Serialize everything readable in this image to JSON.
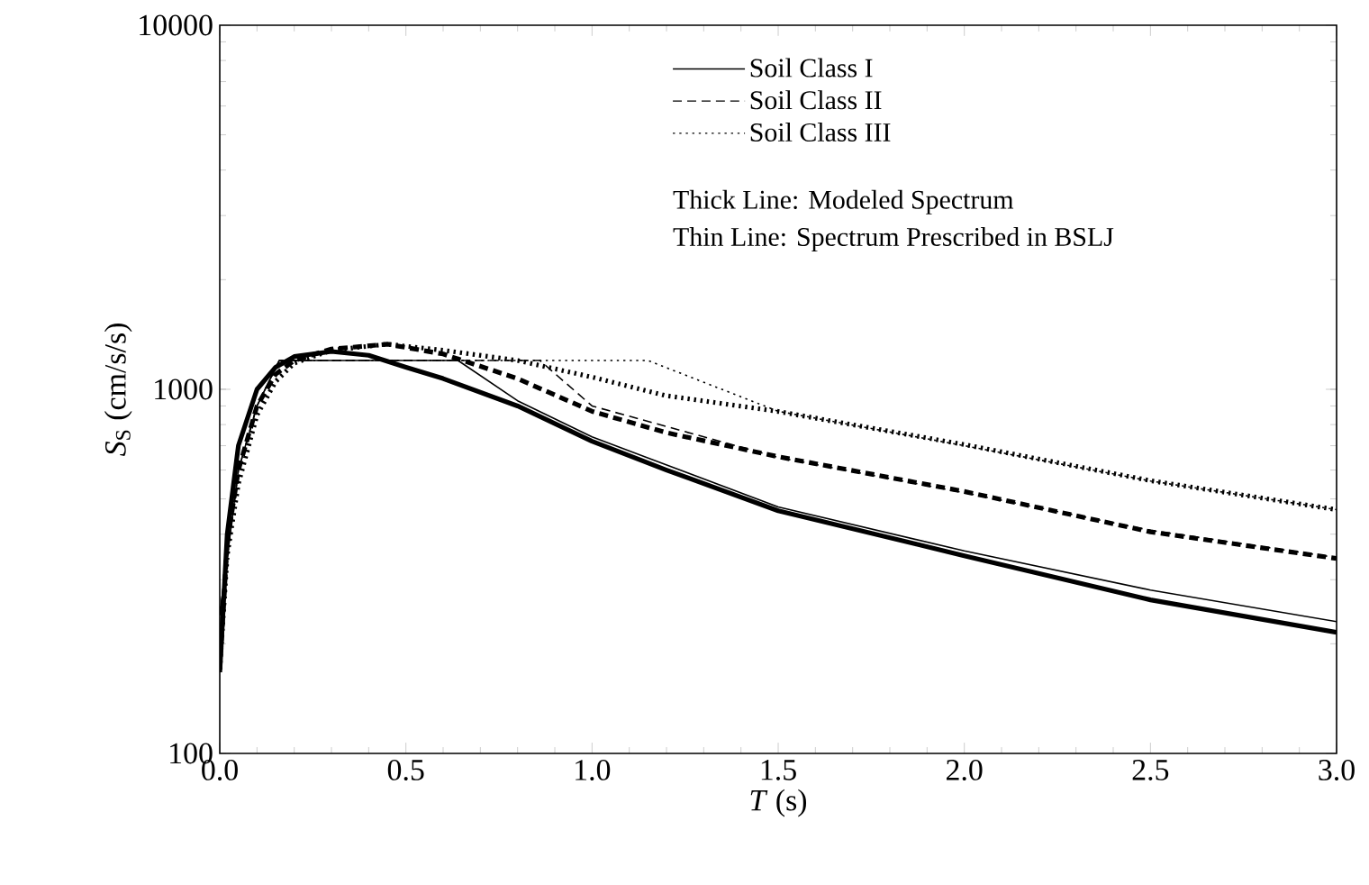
{
  "chart_data": {
    "type": "line",
    "xlabel": "*T* (s)",
    "ylabel": "*S*$_{S}$ (cm/s/s)",
    "log": "y",
    "xlim": [
      0,
      3.0
    ],
    "ylim": [
      100,
      10000
    ],
    "xticks": [
      {
        "value": 0,
        "label": "0.0"
      },
      0.5,
      {
        "value": 1,
        "label": "1.0"
      },
      1.5,
      {
        "value": 2,
        "label": "2.0"
      },
      2.5,
      {
        "value": 3,
        "label": "3.0"
      }
    ],
    "yticks": [
      100,
      1000,
      10000
    ],
    "grid": false,
    "legend": "top right",
    "marker": "none",
    "series": [
      {
        "name": "Soil Class I",
        "color": "#000000",
        "line_style": "solid",
        "x": [
          0,
          0.02,
          0.05,
          0.1,
          0.15,
          0.2,
          0.3,
          0.4,
          0.5,
          0.6,
          0.8,
          1.0,
          1.2,
          1.5,
          2.0,
          2.5,
          3.0
        ],
        "values": [
          167,
          400,
          700,
          1000,
          1150,
          1230,
          1270,
          1240,
          1150,
          1070,
          900,
          720,
          600,
          464,
          349,
          264,
          215
        ]
      },
      {
        "name": "Soil Class II",
        "color": "#000000",
        "line_style": "dashed",
        "x": [
          0,
          0.02,
          0.05,
          0.1,
          0.15,
          0.2,
          0.3,
          0.45,
          0.6,
          0.8,
          1.0,
          1.2,
          1.5,
          2.0,
          2.5,
          3.0
        ],
        "values": [
          170,
          380,
          600,
          900,
          1100,
          1200,
          1290,
          1330,
          1250,
          1070,
          870,
          760,
          653,
          524,
          406,
          343
        ]
      },
      {
        "name": "Soil Class III",
        "color": "#000000",
        "line_style": "dotted",
        "x": [
          0,
          0.02,
          0.05,
          0.1,
          0.15,
          0.2,
          0.3,
          0.45,
          0.6,
          0.8,
          1.0,
          1.2,
          1.5,
          2.0,
          2.5,
          3.0
        ],
        "values": [
          170,
          350,
          550,
          850,
          1050,
          1180,
          1280,
          1330,
          1280,
          1200,
          1080,
          960,
          869,
          705,
          561,
          467
        ]
      },
      {
        "color": "#000000",
        "line_style": "solid",
        "x": [
          0,
          0.05,
          0.1,
          0.16,
          0.64,
          0.8,
          1.0,
          1.5,
          2.0,
          2.5,
          3.0
        ],
        "values": [
          240,
          600,
          900,
          1200,
          1200,
          930,
          740,
          475,
          360,
          281,
          230
        ]
      },
      {
        "color": "#000000",
        "line_style": "dashed",
        "x": [
          0,
          0.05,
          0.1,
          0.16,
          0.86,
          1.0,
          1.5,
          2.0,
          2.5,
          3.0
        ],
        "values": [
          240,
          600,
          900,
          1200,
          1200,
          900,
          650,
          520,
          410,
          345
        ]
      },
      {
        "color": "#000000",
        "line_style": "dotted",
        "x": [
          0,
          0.05,
          0.1,
          0.16,
          1.15,
          1.5,
          2.0,
          2.5,
          3.0
        ],
        "values": [
          240,
          600,
          900,
          1200,
          1200,
          870,
          700,
          560,
          467
        ]
      }
    ],
    "annotations": [
      "Thick Line: Modeled Spectrum",
      "Thin Line: Spectrum Prescribed in BSLJ"
    ]
  }
}
